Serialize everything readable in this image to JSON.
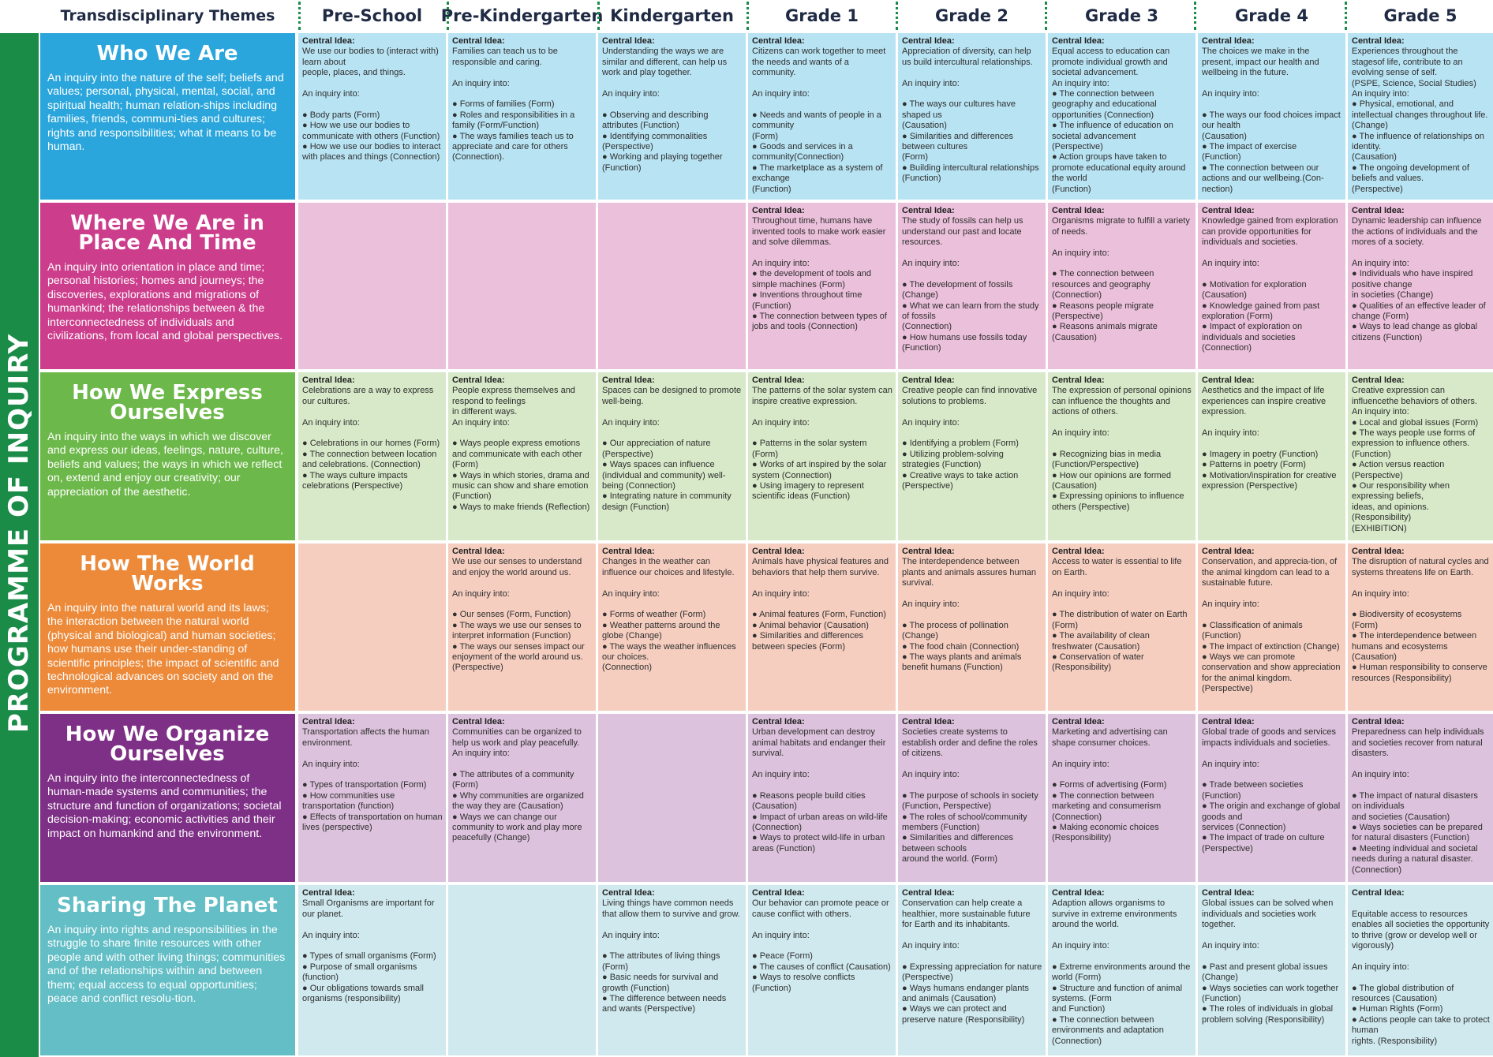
{
  "header": {
    "themes_label": "Transdisciplinary Themes",
    "grades": [
      "Pre-School",
      "Pre-Kindergarten",
      "Kindergarten",
      "Grade 1",
      "Grade 2",
      "Grade 3",
      "Grade 4",
      "Grade 5"
    ]
  },
  "side_label": "PROGRAMME OF INQUIRY",
  "central_idea_label": "Central Idea:",
  "colors": {
    "band": "#1a8c48",
    "themes": [
      "#2ba6dc",
      "#cc3d8c",
      "#6db84a",
      "#ec8a3a",
      "#7e2f86",
      "#63bec6"
    ],
    "cells": [
      "#b8e3f3",
      "#ebc0db",
      "#d7e9c8",
      "#f5cec0",
      "#dcc2dc",
      "#cfe9ee"
    ]
  },
  "themes": [
    {
      "title": "Who We Are",
      "description": "An inquiry into the nature of the self; beliefs and values; personal, physical, mental, social, and spiritual health; human relation-ships including families, friends, communi-ties and cultures; rights and responsibilities; what it means to be human.",
      "cells": [
        "We use our bodies to (interact with) learn about\npeople, places, and things.\n\nAn inquiry into:\n\n● Body parts (Form)\n● How we use our bodies to communicate with others (Function)\n● How we use our bodies to interact with places and things (Connection)",
        "Families can teach us to be responsible and caring.\n\nAn inquiry into:\n\n● Forms of families (Form)\n● Roles and responsibilities in a family (Form/Function)\n● The ways families teach us to appreciate and care for others (Connection).",
        "Understanding the ways we are similar and different, can help us work and play together.\n\nAn inquiry into:\n\n● Observing and describing attributes (Function)\n● Identifying commonalities (Perspective)\n● Working and playing together (Function)",
        "Citizens can work together to meet the needs and wants of a community.\n\nAn inquiry into:\n\n● Needs and wants of people in a community\n(Form)\n● Goods and services in a community(Connection)\n● The marketplace as a system of exchange\n(Function)",
        "Appreciation of diversity, can help us build intercultural relationships.\n\nAn inquiry into:\n\n● The ways our cultures have shaped us\n(Causation)\n● Similarities and differences between cultures\n(Form)\n● Building intercultural relationships (Function)",
        "Equal access to education can promote individual growth and societal advancement.\nAn inquiry into:\n● The connection between geography and educational opportunities (Connection)\n● The influence of education on societal advancement\n(Perspective)\n● Action groups have taken to promote educational equity around the world\n(Function)",
        "The choices we make in the present, impact our health and wellbeing in the future.\n\nAn inquiry into:\n\n● The ways our food choices impact our health\n(Causation)\n● The impact of exercise\n(Function)\n● The connection between our actions and our wellbeing.(Con-nection)",
        "Experiences throughout the stagesof life, contribute to an evolving sense of self.\n(PSPE, Science, Social Studies)\nAn inquiry into:\n● Physical, emotional, and intellectual changes throughout life. (Change)\n● The influence of relationships on identity.\n(Causation)\n● The ongoing development of beliefs and values.\n(Perspective)"
      ]
    },
    {
      "title": "Where We Are in Place And Time",
      "description": "An inquiry into orientation in place and time; personal histories; homes and journeys; the discoveries, explorations and migrations of humankind; the relationships between & the interconnectedness of individuals and civilizations, from local and global perspectives.",
      "cells": [
        "",
        "",
        "",
        "Throughout time, humans have invented tools to make work easier and solve dilemmas.\n\nAn inquiry into:\n● the development of tools and simple machines (Form)\n● Inventions throughout time (Function)\n● The connection between types of jobs and tools (Connection)",
        "The study of fossils can help us understand our past and locate resources.\n\nAn inquiry into:\n\n● The development of fossils (Change)\n● What we can learn from the study of fossils\n(Connection)\n● How humans use fossils today (Function)",
        "Organisms migrate to fulfill a variety of needs.\n\nAn inquiry into:\n\n● The connection between resources and geography (Connection)\n● Reasons people migrate (Perspective)\n● Reasons animals migrate (Causation)",
        "Knowledge gained from exploration can provide opportunities for individuals and societies.\n\nAn inquiry into:\n\n● Motivation for exploration (Causation)\n● Knowledge gained from past exploration (Form)\n● Impact of exploration on individuals and societies (Connection)",
        "Dynamic leadership can influence the actions of individuals and the mores of a society.\n\nAn inquiry into:\n● Individuals who have inspired positive change\nin societies (Change)\n● Qualities of an effective leader of change (Form)\n● Ways to lead change as global citizens (Function)"
      ]
    },
    {
      "title": "How We Express Ourselves",
      "description": " An inquiry into the ways in which we discover and express our ideas, feelings, nature, culture, beliefs and values; the ways in which we reflect on, extend and enjoy our creativity; our appreciation of the aesthetic.",
      "cells": [
        "Celebrations are a way to express our cultures.\n\nAn inquiry into:\n\n● Celebrations in our homes (Form)\n● The connection between location and celebrations. (Connection)\n● The ways culture impacts celebrations (Perspective)",
        "People express themselves and respond to feelings\nin different ways.\nAn inquiry into:\n\n● Ways people express emotions and communicate with each other (Form)\n● Ways in which stories, drama and music can show and share emotion (Function)\n● Ways to make friends (Reflection)",
        "Spaces can be designed to promote well-being.\n\nAn inquiry into:\n\n● Our appreciation of nature (Perspective)\n● Ways spaces can influence (individual and community) well-being (Connection)\n● Integrating nature in community design (Function)",
        "The patterns of the solar system can inspire creative expression.\n\nAn inquiry into:\n\n● Patterns in the solar system (Form)\n● Works of art inspired by the solar system (Connection)\n● Using imagery to represent scientific ideas (Function)",
        "Creative people can find innovative solutions to problems.\n\nAn inquiry into:\n\n● Identifying a problem (Form)\n● Utilizing problem-solving strategies (Function)\n● Creative ways to take action (Perspective)",
        "The expression of personal opinions can influence the thoughts and actions of others.\n\nAn inquiry into:\n\n● Recognizing bias in media (Function/Perspective)\n● How our opinions are formed (Causation)\n● Expressing opinions to influence others (Perspective)",
        "Aesthetics and the impact of life experiences can inspire creative expression.\n\nAn inquiry into:\n\n● Imagery in poetry (Function)\n● Patterns in poetry (Form)\n● Motivation/inspiration for creative expression (Perspective)",
        "Creative expression can influencethe behaviors of others.\nAn inquiry into:\n● Local and global issues (Form)\n● The ways people use forms of expression to influence others. (Function)\n● Action versus reaction (Perspective)\n● Our responsibility when expressing beliefs,\nideas, and opinions. (Responsibility)\n(EXHIBITION)"
      ]
    },
    {
      "title": "How The World Works",
      "description": "An inquiry into the natural world and its laws; the interaction between the natural world (physical and biological) and human societies; how humans use their under-standing of scientific principles; the impact of scientific and technological advances on society and on the environment.",
      "cells": [
        "",
        "We use our senses to understand and enjoy the world around us.\n\nAn inquiry into:\n\n● Our senses (Form, Function)\n● The ways we use our senses to interpret information (Function)\n● The ways our senses impact our enjoyment of the world around us. (Perspective)",
        "Changes in the weather can influence our choices and lifestyle.\n\nAn inquiry into:\n\n● Forms of weather (Form)\n● Weather patterns around the globe (Change)\n● The ways the weather influences our choices.\n(Connection)",
        "Animals have physical features and behaviors that help them survive.\n\nAn inquiry into:\n\n● Animal features (Form, Function)\n● Animal behavior (Causation)\n● Similarities and differences between species (Form)",
        "The interdependence between plants and animals assures human survival.\n\nAn inquiry into:\n\n● The process of pollination (Change)\n● The food chain (Connection)\n● The ways plants and animals benefit humans (Function)",
        "Access to water is essential to life on Earth.\n\nAn inquiry into:\n\n● The distribution of water on Earth (Form)\n● The availability of clean freshwater (Causation)\n● Conservation of water (Responsibility)",
        "Conservation, and apprecia-tion, of the animal kingdom can lead to a sustainable future.\n\nAn inquiry into:\n\n● Classification of animals (Function)\n● The impact of extinction (Change)\n● Ways we can promote conservation and show appreciation for the animal kingdom. (Perspective)",
        "The disruption of natural cycles and systems threatens life on Earth.\n\nAn inquiry into:\n\n● Biodiversity of ecosystems (Form)\n● The interdependence between humans and ecosystems (Causation)\n● Human responsibility to conserve resources (Responsibility)"
      ]
    },
    {
      "title": "How We Organize Ourselves",
      "description": "An inquiry into the interconnectedness of human-made systems and communities; the structure and function of organizations; societal decision-making; economic activities and their impact on humankind and the environment.",
      "cells": [
        "Transportation affects the human environment.\n\nAn inquiry into:\n\n● Types of transportation (Form)\n● How communities use transportation (function)\n● Effects of transportation on human lives (perspective)",
        "Communities can be organized to help us work and play peacefully.\nAn inquiry into:\n\n● The attributes of a community (Form)\n● Why communities are organized the way they are (Causation)\n● Ways we can change our community to work and play more peacefully (Change)",
        "",
        "Urban development can destroy animal habitats and endanger their survival.\n\nAn inquiry into:\n\n● Reasons people build cities (Causation)\n● Impact of urban areas on wild-life (Connection)\n● Ways to protect wild-life in urban areas (Function)",
        "Societies create systems to establish order and define the roles of citizens.\n\nAn inquiry into:\n\n● The purpose of schools in society (Function, Perspective)\n● The roles of school/community members (Function)\n● Similarities and differences between schools\naround the world. (Form)",
        "Marketing and advertising can shape consumer choices.\n\nAn inquiry into:\n\n● Forms of advertising (Form)\n● The connection between marketing and consumerism (Connection)\n● Making economic choices (Responsibility)",
        "Global trade of goods and services impacts individuals and societies.\n\nAn inquiry into:\n\n● Trade between societies (Function)\n● The origin and exchange of global goods and\nservices (Connection)\n● The impact of trade on culture (Perspective)",
        "Preparedness can help individuals and societies recover from natural disasters.\n\nAn inquiry into:\n\n● The impact of natural disasters on individuals\nand societies (Causation)\n● Ways societies can be prepared for natural disasters (Function)\n● Meeting individual and societal needs during a natural disaster. (Connection)"
      ]
    },
    {
      "title": "Sharing The Planet",
      "description": "An inquiry into rights and responsibilities in the struggle to share finite resources with other people and with other living things; communities and of the relationships within and between them; equal access to equal opportunities; peace and conflict resolu-tion.",
      "cells": [
        "Small Organisms are important for our planet.\n\nAn inquiry into:\n\n● Types of small organisms (Form)\n● Purpose of small organisms (function)\n● Our obligations towards small organisms (responsibility)",
        "",
        "Living things have common needs that allow them to survive and grow.\n\nAn inquiry into:\n\n● The attributes of living things (Form)\n● Basic needs for survival and growth (Function)\n● The difference between needs and wants (Perspective)",
        "Our behavior can promote peace or cause conflict with others.\n\nAn inquiry into:\n\n● Peace (Form)\n● The causes of conflict (Causation)\n● Ways to resolve conflicts (Function)",
        "Conservation can help create a healthier, more sustainable future for Earth and its inhabitants.\n\nAn inquiry into:\n\n● Expressing appreciation for nature (Perspective)\n● Ways humans endanger plants and animals (Causation)\n● Ways we can protect and preserve nature (Responsibility)",
        "Adaption allows organisms to survive in extreme environments around the world.\n\nAn inquiry into:\n\n● Extreme environments around the world (Form)\n● Structure and function of animal systems. (Form\nand Function)\n● The connection between environments and adaptation (Connection)",
        "Global issues can be solved when individuals and societies work together.\n\nAn inquiry into:\n\n● Past and present global issues (Change)\n● Ways societies can work together (Function)\n● The roles of individuals in global problem solving (Responsibility)",
        "\nEquitable access to resources enables all societies the opportunity to thrive (grow or develop well or vigorously)\n\nAn inquiry into:\n\n● The global distribution of resources (Causation)\n● Human Rights (Form)\n● Actions people can take to protect human\nrights. (Responsibility)"
      ]
    }
  ]
}
